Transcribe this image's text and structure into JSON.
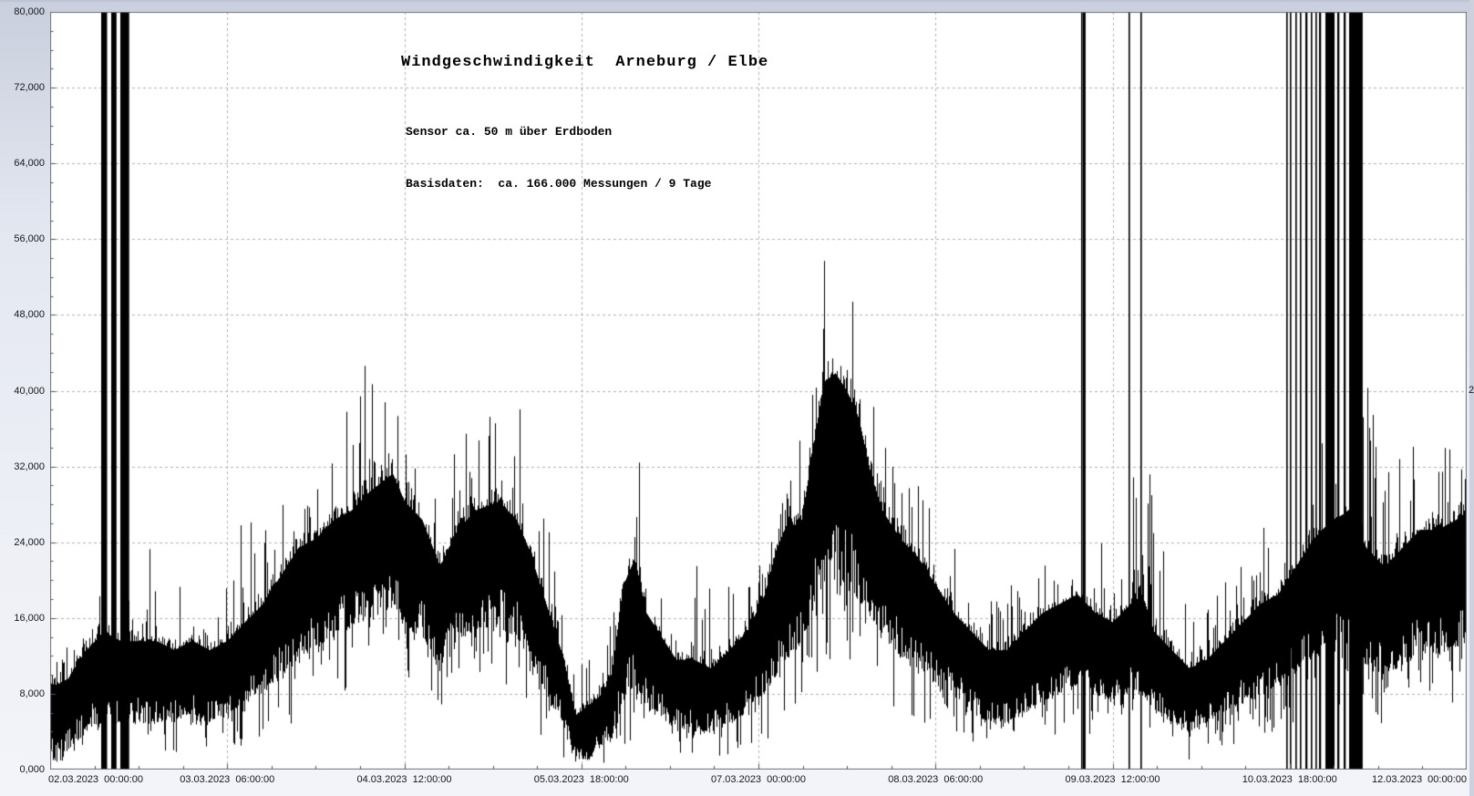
{
  "window": {
    "bg_top_color": "#c9cfdd",
    "bg_bottom_color": "#f2f4f9",
    "plot_bg_color": "#ffffff",
    "border_color": "#6b6f78",
    "grid_color": "#b2b2b2",
    "tick_color": "#555555",
    "label_color": "#15161a"
  },
  "chart_data": {
    "type": "line",
    "title": "Windgeschwindigkeit  Arneburg / Elbe",
    "subtitle1": "Sensor ca. 50 m über Erdboden",
    "subtitle2": "Basisdaten:  ca. 166.000 Messungen / 9 Tage",
    "line_color": "#000000",
    "grid": "dashed",
    "legend": "none",
    "ylim": [
      0,
      80
    ],
    "xlim_hours": [
      0,
      240
    ],
    "y_ticks": [
      {
        "value": 80,
        "label": "80,000"
      },
      {
        "value": 72,
        "label": "72,000"
      },
      {
        "value": 64,
        "label": "64,000"
      },
      {
        "value": 56,
        "label": "56,000"
      },
      {
        "value": 48,
        "label": "48,000"
      },
      {
        "value": 40,
        "label": "40,000"
      },
      {
        "value": 32,
        "label": "32,000"
      },
      {
        "value": 24,
        "label": "24,000"
      },
      {
        "value": 16,
        "label": "16,000"
      },
      {
        "value": 8,
        "label": "8,000"
      },
      {
        "value": 0,
        "label": "0,000"
      }
    ],
    "x_ticks": [
      {
        "hours": 0,
        "label": "02.03.2023  00:00:00"
      },
      {
        "hours": 30,
        "label": "03.03.2023  06:00:00"
      },
      {
        "hours": 60,
        "label": "04.03.2023  12:00:00"
      },
      {
        "hours": 90,
        "label": "05.03.2023  18:00:00"
      },
      {
        "hours": 120,
        "label": "07.03.2023  00:00:00"
      },
      {
        "hours": 150,
        "label": "08.03.2023  06:00:00"
      },
      {
        "hours": 180,
        "label": "09.03.2023  12:00:00"
      },
      {
        "hours": 210,
        "label": "10.03.2023  18:00:00"
      },
      {
        "hours": 240,
        "label": "12.03.2023  00:00:00"
      }
    ],
    "minor_x_tick_hours": 7.5,
    "minor_y_tick_step": 2,
    "envelope_fields": [
      "hours_since_start",
      "band_low",
      "band_high",
      "gust_peak",
      "min_dip"
    ],
    "envelope_points": [
      [
        0,
        1,
        9,
        16.5,
        0.2
      ],
      [
        3,
        2,
        10,
        14,
        0.5
      ],
      [
        6,
        4,
        13,
        20,
        1
      ],
      [
        9,
        5,
        15,
        21,
        2
      ],
      [
        12,
        5,
        14,
        18,
        2
      ],
      [
        15,
        5,
        14,
        24,
        1.5
      ],
      [
        18,
        5,
        14,
        24,
        1.5
      ],
      [
        21,
        5,
        13,
        20,
        1
      ],
      [
        24,
        6,
        14,
        20,
        1.5
      ],
      [
        27,
        5,
        13,
        19,
        1
      ],
      [
        30,
        6,
        14,
        21,
        1.5
      ],
      [
        33,
        7,
        16,
        28,
        2
      ],
      [
        36,
        8,
        18,
        26,
        3
      ],
      [
        39,
        10,
        21,
        30,
        4
      ],
      [
        42,
        12,
        24,
        36,
        5
      ],
      [
        45,
        13,
        25,
        34,
        6
      ],
      [
        48,
        14,
        27,
        41,
        7
      ],
      [
        51,
        15,
        28,
        42,
        8
      ],
      [
        54,
        16,
        30,
        44,
        9
      ],
      [
        58,
        17,
        32,
        47.3,
        10
      ],
      [
        60,
        15,
        29,
        42,
        8
      ],
      [
        63,
        14,
        27,
        38,
        7
      ],
      [
        66,
        11,
        22,
        33,
        5
      ],
      [
        69,
        13,
        26,
        36,
        6
      ],
      [
        72,
        15,
        28,
        41,
        8
      ],
      [
        76,
        15,
        29,
        43.5,
        8
      ],
      [
        79,
        14,
        27,
        40,
        7
      ],
      [
        81,
        12,
        24,
        36,
        5
      ],
      [
        84,
        8,
        18,
        28,
        2
      ],
      [
        87,
        4,
        12,
        18,
        0.5
      ],
      [
        89,
        1,
        6,
        11,
        0.1
      ],
      [
        91,
        1,
        7,
        13,
        0.1
      ],
      [
        93,
        2,
        8,
        14,
        0.3
      ],
      [
        95,
        3,
        10,
        16,
        0.5
      ],
      [
        97,
        7,
        20,
        34,
        1.5
      ],
      [
        99,
        9,
        23,
        41.5,
        2
      ],
      [
        101,
        7,
        17,
        25,
        2
      ],
      [
        103,
        6,
        15,
        21,
        1.5
      ],
      [
        106,
        4,
        12,
        18,
        1
      ],
      [
        109,
        4,
        12,
        25,
        0.8
      ],
      [
        112,
        4,
        11,
        26,
        0.5
      ],
      [
        115,
        5,
        13,
        20,
        1
      ],
      [
        118,
        6,
        15,
        24,
        2
      ],
      [
        121,
        8,
        19,
        30,
        3
      ],
      [
        123,
        10,
        24,
        36,
        4
      ],
      [
        125,
        12,
        27,
        43,
        5
      ],
      [
        127,
        13,
        26,
        38,
        6
      ],
      [
        129,
        16,
        34,
        50,
        8
      ],
      [
        131,
        20,
        42,
        57.8,
        10
      ],
      [
        133,
        20,
        43,
        52,
        11
      ],
      [
        135,
        19,
        41,
        52.5,
        10
      ],
      [
        137,
        18,
        38,
        48,
        9
      ],
      [
        139,
        16,
        32,
        42,
        8
      ],
      [
        141,
        14,
        28,
        36,
        6
      ],
      [
        144,
        12,
        25,
        33,
        5
      ],
      [
        147,
        11,
        23,
        31,
        4
      ],
      [
        150,
        9,
        20,
        28,
        3
      ],
      [
        153,
        8,
        17,
        24.8,
        2
      ],
      [
        156,
        6,
        15,
        21,
        1.5
      ],
      [
        159,
        5,
        13,
        19,
        1
      ],
      [
        162,
        5,
        13,
        20,
        1
      ],
      [
        165,
        6,
        15,
        22,
        1.5
      ],
      [
        168,
        7,
        17,
        23,
        2
      ],
      [
        171,
        8,
        18,
        25,
        2.5
      ],
      [
        174,
        9,
        19,
        26,
        3
      ],
      [
        177,
        8,
        17,
        24,
        2.5
      ],
      [
        180,
        7,
        16,
        25,
        2
      ],
      [
        183,
        8,
        18,
        30,
        2.5
      ],
      [
        185,
        8,
        19,
        36.5,
        2.5
      ],
      [
        187,
        6,
        15,
        31.5,
        1.5
      ],
      [
        190,
        5,
        13,
        22,
        1
      ],
      [
        193,
        4,
        11,
        18,
        0.8
      ],
      [
        196,
        5,
        12,
        19,
        1
      ],
      [
        199,
        6,
        14,
        21,
        1.5
      ],
      [
        202,
        7,
        16,
        23,
        2
      ],
      [
        205,
        8,
        18,
        26,
        2.5
      ],
      [
        208,
        9,
        19,
        27,
        3
      ],
      [
        211,
        10,
        22,
        30,
        4
      ],
      [
        214,
        12,
        25,
        34,
        5
      ],
      [
        217,
        13,
        27,
        38,
        6
      ],
      [
        220,
        13,
        28,
        40,
        6
      ],
      [
        223,
        11,
        24,
        42,
        4
      ],
      [
        226,
        10,
        22,
        32,
        3.5
      ],
      [
        229,
        11,
        24,
        34,
        4
      ],
      [
        232,
        12,
        26,
        36.5,
        5
      ],
      [
        235,
        12,
        26,
        34,
        5
      ],
      [
        238,
        13,
        27,
        36,
        6
      ],
      [
        240,
        13,
        28,
        33,
        7
      ]
    ],
    "offscale_spike_intervals_hours": [
      [
        8.6,
        9.6
      ],
      [
        10.4,
        11.3
      ],
      [
        11.9,
        13.4
      ],
      [
        174.6,
        174.85
      ],
      [
        175.05,
        175.5
      ],
      [
        182.7,
        182.95
      ],
      [
        184.7,
        184.95
      ],
      [
        209.4,
        209.65
      ],
      [
        210.1,
        210.35
      ],
      [
        211.0,
        211.25
      ],
      [
        211.8,
        212.05
      ],
      [
        212.7,
        213.05
      ],
      [
        213.6,
        213.85
      ],
      [
        214.3,
        214.55
      ],
      [
        215.0,
        215.35
      ],
      [
        216.0,
        217.55
      ],
      [
        218.1,
        218.45
      ],
      [
        219.1,
        219.45
      ],
      [
        220.0,
        222.3
      ]
    ],
    "clipped_right_edge_label": "2"
  }
}
